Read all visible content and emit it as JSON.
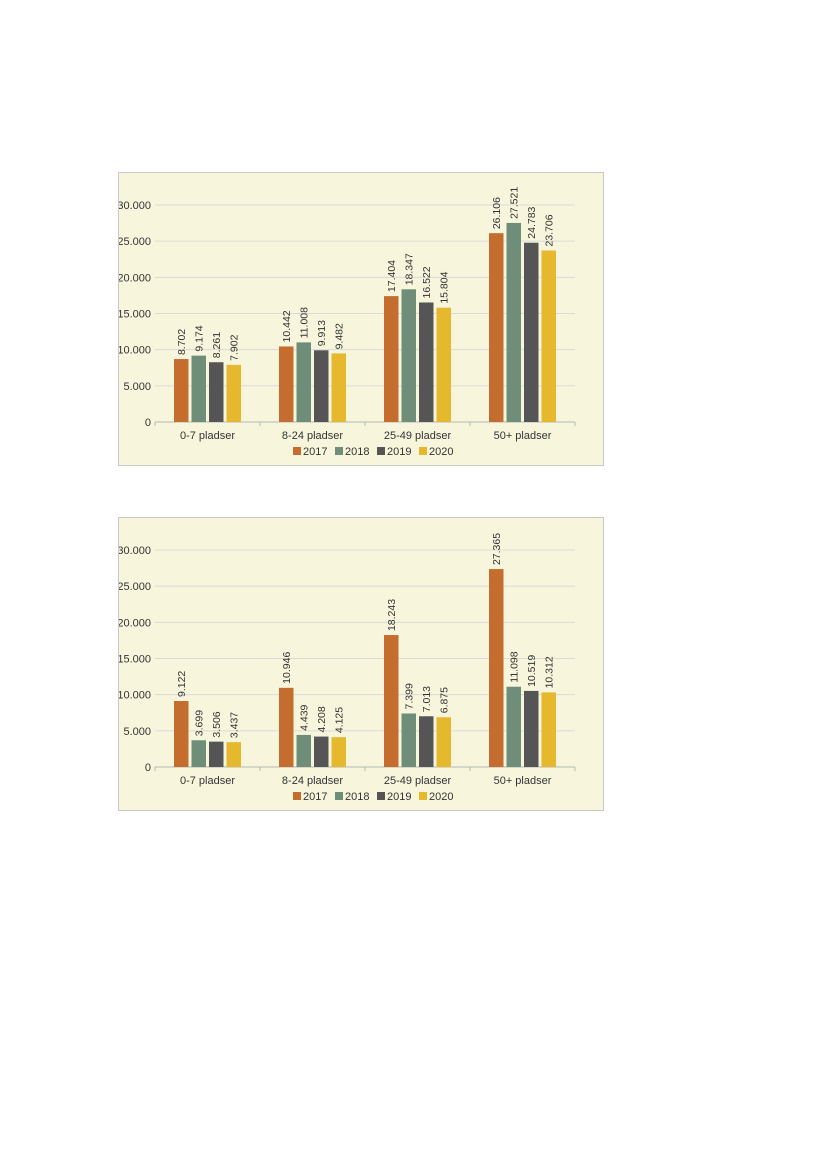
{
  "colors": {
    "2017": "#c46d2f",
    "2018": "#6f8e7a",
    "2019": "#555555",
    "2020": "#e5b82e",
    "background": "#f7f6dd",
    "grid": "#d9d9d9"
  },
  "chart_data": [
    {
      "type": "bar",
      "categories": [
        "0-7 pladser",
        "8-24 pladser",
        "25-49 pladser",
        "50+ pladser"
      ],
      "series": [
        {
          "name": "2017",
          "values": [
            8702,
            10442,
            17404,
            26106
          ],
          "labels": [
            "8.702",
            "10.442",
            "17.404",
            "26.106"
          ]
        },
        {
          "name": "2018",
          "values": [
            9174,
            11008,
            18347,
            27521
          ],
          "labels": [
            "9.174",
            "11.008",
            "18.347",
            "27.521"
          ]
        },
        {
          "name": "2019",
          "values": [
            8261,
            9913,
            16522,
            24783
          ],
          "labels": [
            "8.261",
            "9.913",
            "16.522",
            "24.783"
          ]
        },
        {
          "name": "2020",
          "values": [
            7902,
            9482,
            15804,
            23706
          ],
          "labels": [
            "7.902",
            "9.482",
            "15.804",
            "23.706"
          ]
        }
      ],
      "yticks": [
        "0",
        "5.000",
        "10.000",
        "15.000",
        "20.000",
        "25.000",
        "30.000"
      ],
      "ylim": [
        0,
        30000
      ],
      "grid": true,
      "legend": "bottom",
      "title": "",
      "xlabel": "",
      "ylabel": ""
    },
    {
      "type": "bar",
      "categories": [
        "0-7 pladser",
        "8-24 pladser",
        "25-49 pladser",
        "50+ pladser"
      ],
      "series": [
        {
          "name": "2017",
          "values": [
            9122,
            10946,
            18243,
            27365
          ],
          "labels": [
            "9.122",
            "10.946",
            "18.243",
            "27.365"
          ]
        },
        {
          "name": "2018",
          "values": [
            3699,
            4439,
            7399,
            11098
          ],
          "labels": [
            "3.699",
            "4.439",
            "7.399",
            "11.098"
          ]
        },
        {
          "name": "2019",
          "values": [
            3506,
            4208,
            7013,
            10519
          ],
          "labels": [
            "3.506",
            "4.208",
            "7.013",
            "10.519"
          ]
        },
        {
          "name": "2020",
          "values": [
            3437,
            4125,
            6875,
            10312
          ],
          "labels": [
            "3.437",
            "4.125",
            "6.875",
            "10.312"
          ]
        }
      ],
      "yticks": [
        "0",
        "5.000",
        "10.000",
        "15.000",
        "20.000",
        "25.000",
        "30.000"
      ],
      "ylim": [
        0,
        30000
      ],
      "grid": true,
      "legend": "bottom",
      "title": "",
      "xlabel": "",
      "ylabel": ""
    }
  ]
}
